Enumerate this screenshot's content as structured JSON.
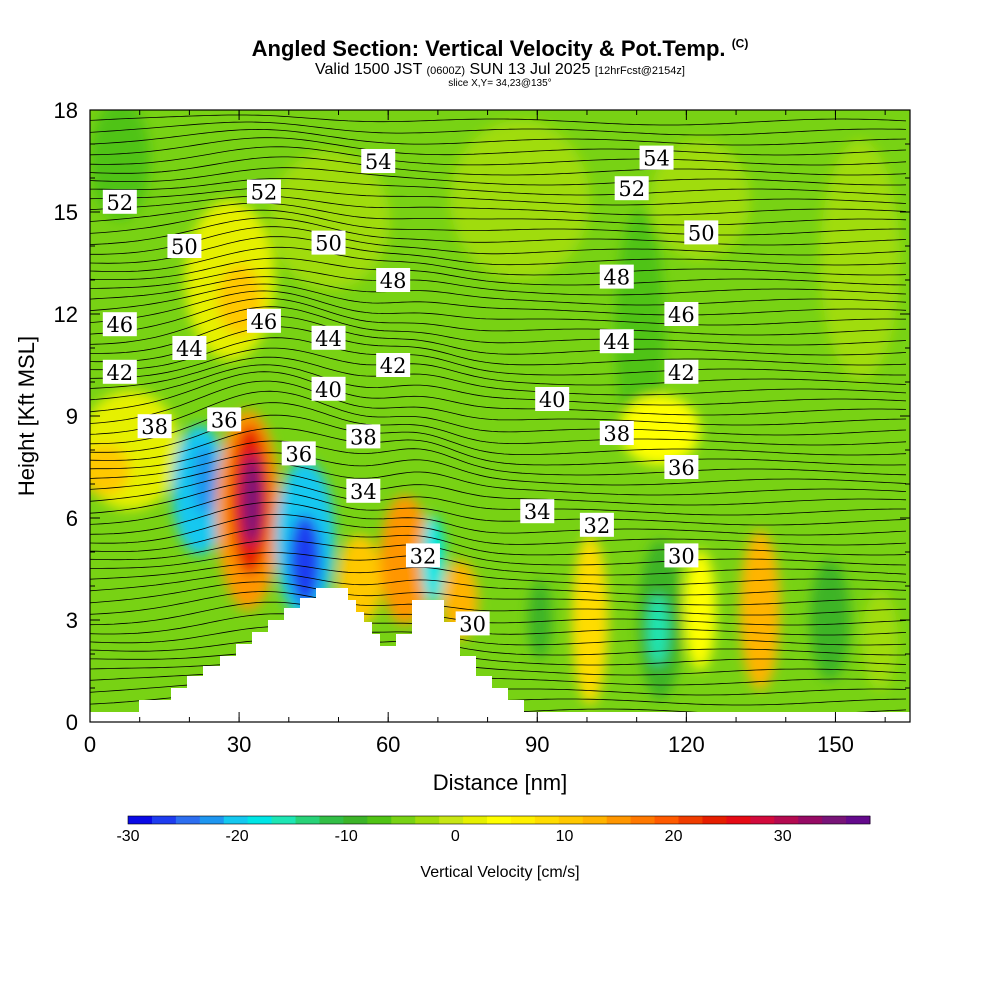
{
  "header": {
    "title": "Angled Section: Vertical Velocity & Pot.Temp.",
    "title_mark": "(C)",
    "valid_prefix": "Valid 1500 JST",
    "valid_utc": "(0600Z)",
    "valid_date": "SUN 13 Jul 2025",
    "forecast_info": "[12hrFcst@2154z]",
    "slice": "slice X,Y= 34,23@135°"
  },
  "chart_data": {
    "type": "heatmap",
    "xlabel": "Distance [nm]",
    "ylabel": "Height [Kft MSL]",
    "xlim": [
      0,
      165
    ],
    "ylim": [
      0,
      18
    ],
    "x_ticks": [
      "0",
      "30",
      "60",
      "90",
      "120",
      "150"
    ],
    "y_ticks": [
      "0",
      "3",
      "6",
      "9",
      "12",
      "15",
      "18"
    ],
    "colorbar": {
      "label": "Vertical Velocity [cm/s]",
      "range": [
        -30,
        38
      ],
      "tick_labels": [
        "-30",
        "-20",
        "-10",
        "0",
        "10",
        "20",
        "30"
      ],
      "colors": [
        "#0a0ae6",
        "#1e3cf0",
        "#2d6ef0",
        "#1e96f0",
        "#14c8f0",
        "#00e6e6",
        "#1ee6b4",
        "#28d278",
        "#32be46",
        "#3cb428",
        "#50c314",
        "#78d214",
        "#a0dc0a",
        "#c8e614",
        "#e6f000",
        "#ffff00",
        "#fff000",
        "#ffdc00",
        "#ffc800",
        "#ffb400",
        "#ff9600",
        "#ff7800",
        "#ff5a00",
        "#f03c00",
        "#e61e00",
        "#e60a14",
        "#d20a3c",
        "#b40a50",
        "#960a64",
        "#781478",
        "#640a8c"
      ]
    },
    "contour_labels": [
      {
        "value": "54",
        "x": 58,
        "y": 16.5
      },
      {
        "value": "54",
        "x": 114,
        "y": 16.6
      },
      {
        "value": "52",
        "x": 6,
        "y": 15.3
      },
      {
        "value": "52",
        "x": 35,
        "y": 15.6
      },
      {
        "value": "52",
        "x": 109,
        "y": 15.7
      },
      {
        "value": "50",
        "x": 19,
        "y": 14.0
      },
      {
        "value": "50",
        "x": 48,
        "y": 14.1
      },
      {
        "value": "50",
        "x": 123,
        "y": 14.4
      },
      {
        "value": "48",
        "x": 61,
        "y": 13.0
      },
      {
        "value": "48",
        "x": 106,
        "y": 13.1
      },
      {
        "value": "46",
        "x": 6,
        "y": 11.7
      },
      {
        "value": "46",
        "x": 35,
        "y": 11.8
      },
      {
        "value": "46",
        "x": 119,
        "y": 12.0
      },
      {
        "value": "44",
        "x": 20,
        "y": 11.0
      },
      {
        "value": "44",
        "x": 48,
        "y": 11.3
      },
      {
        "value": "44",
        "x": 106,
        "y": 11.2
      },
      {
        "value": "42",
        "x": 6,
        "y": 10.3
      },
      {
        "value": "42",
        "x": 61,
        "y": 10.5
      },
      {
        "value": "42",
        "x": 119,
        "y": 10.3
      },
      {
        "value": "40",
        "x": 48,
        "y": 9.8
      },
      {
        "value": "40",
        "x": 93,
        "y": 9.5
      },
      {
        "value": "38",
        "x": 13,
        "y": 8.7
      },
      {
        "value": "38",
        "x": 55,
        "y": 8.4
      },
      {
        "value": "38",
        "x": 106,
        "y": 8.5
      },
      {
        "value": "36",
        "x": 27,
        "y": 8.9
      },
      {
        "value": "36",
        "x": 42,
        "y": 7.9
      },
      {
        "value": "36",
        "x": 119,
        "y": 7.5
      },
      {
        "value": "34",
        "x": 55,
        "y": 6.8
      },
      {
        "value": "34",
        "x": 90,
        "y": 6.2
      },
      {
        "value": "32",
        "x": 102,
        "y": 5.8
      },
      {
        "value": "32",
        "x": 67,
        "y": 4.9
      },
      {
        "value": "30",
        "x": 119,
        "y": 4.9
      },
      {
        "value": "30",
        "x": 77,
        "y": 2.9
      }
    ]
  }
}
